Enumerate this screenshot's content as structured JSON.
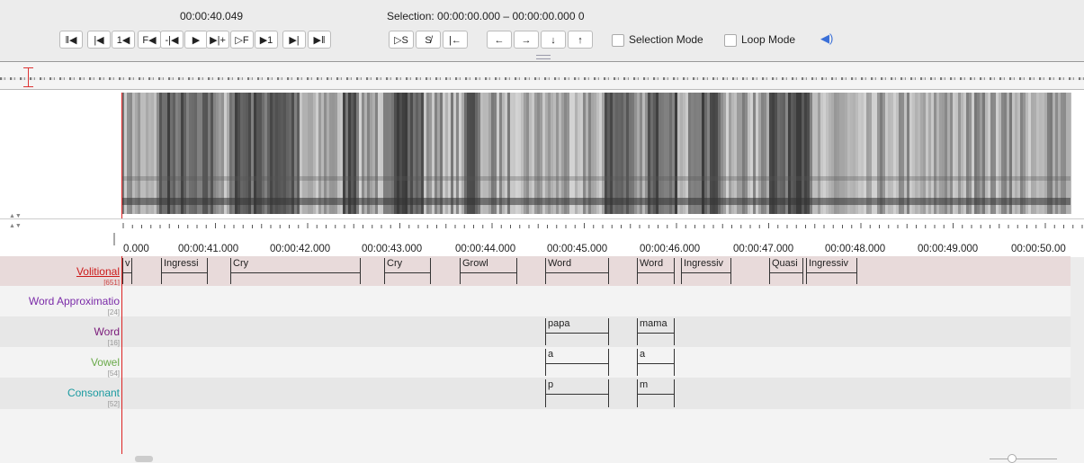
{
  "toolbar": {
    "time": "00:00:40.049",
    "selection": "Selection: 00:00:00.000 – 00:00:00.000 0",
    "buttons": [
      "‖◀",
      "|◀",
      "1◀",
      "F◀",
      "-|◀",
      "▶",
      "▶|+",
      "▷F",
      "▶1",
      "▶|",
      "▶‖"
    ],
    "selection_buttons": [
      "▷S",
      "S̸",
      "|←",
      "←",
      "→",
      "↓",
      "↑"
    ],
    "checkboxes": [
      "Selection Mode",
      "Loop Mode"
    ]
  },
  "ruler": {
    "labels": [
      "0.000",
      "00:00:41.000",
      "00:00:42.000",
      "00:00:43.000",
      "00:00:44.000",
      "00:00:45.000",
      "00:00:46.000",
      "00:00:47.000",
      "00:00:48.000",
      "00:00:49.000",
      "00:00:50.00"
    ]
  },
  "tiers": [
    {
      "name": "Volitional",
      "count": "[651]",
      "annotations": [
        "v",
        "Ingressi",
        "Cry",
        "Cry",
        "Growl",
        "Word",
        "Word",
        "Ingressiv",
        "Quasi",
        "Ingressiv"
      ]
    },
    {
      "name": "Word Approximatio",
      "count": "[24]",
      "annotations": []
    },
    {
      "name": "Word",
      "count": "[16]",
      "annotations": [
        "papa",
        "mama"
      ]
    },
    {
      "name": "Vowel",
      "count": "[54]",
      "annotations": [
        "a",
        "a"
      ]
    },
    {
      "name": "Consonant",
      "count": "[52]",
      "annotations": [
        "p",
        "m"
      ]
    }
  ]
}
